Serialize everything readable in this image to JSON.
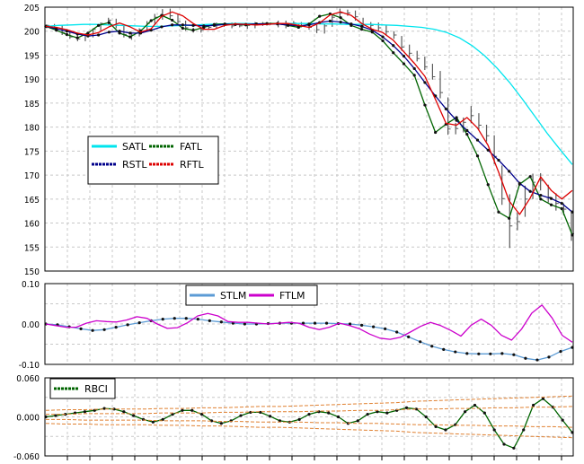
{
  "chart_data": [
    {
      "type": "line",
      "panel": "price",
      "ylim": [
        150,
        205
      ],
      "y_ticks": [
        "150",
        "155",
        "160",
        "165",
        "170",
        "175",
        "180",
        "185",
        "190",
        "195",
        "200",
        "205"
      ],
      "grid": true,
      "legend_placement": "center-left",
      "legend": [
        "SATL",
        "FATL",
        "RSTL",
        "RFTL"
      ],
      "series": [
        {
          "name": "SATL",
          "color": "#00e5ee",
          "values": [
            201.0,
            201.2,
            201.3,
            201.4,
            201.4,
            201.3,
            201.2,
            201.1,
            201.0,
            201.0,
            201.1,
            201.2,
            201.3,
            201.4,
            201.5,
            201.6,
            201.6,
            201.5,
            201.5,
            201.6,
            201.6,
            201.6,
            201.5,
            201.5,
            201.4,
            201.4,
            201.4,
            201.3,
            201.2,
            201.0,
            200.8,
            200.4,
            199.7,
            198.6,
            197.0,
            194.9,
            192.3,
            189.3,
            185.9,
            182.3,
            178.7,
            175.4,
            172.2
          ]
        },
        {
          "name": "FATL",
          "color": "#006400",
          "values": [
            201.0,
            200.2,
            199.3,
            198.6,
            199.6,
            201.2,
            201.8,
            199.6,
            198.8,
            200.0,
            202.2,
            203.3,
            202.3,
            200.6,
            200.2,
            200.8,
            201.4,
            201.5,
            201.4,
            201.3,
            201.5,
            201.6,
            201.6,
            201.2,
            200.8,
            201.5,
            203.1,
            203.6,
            202.8,
            201.2,
            200.4,
            199.8,
            198.0,
            195.5,
            193.2,
            190.8,
            184.6,
            178.9,
            180.6,
            182.0,
            178.5,
            174.0,
            168.0,
            162.3,
            161.0,
            168.1,
            169.7,
            165.0,
            163.8,
            163.0,
            157.5
          ]
        },
        {
          "name": "RSTL",
          "color": "#00008b",
          "values": [
            201.0,
            200.5,
            200.0,
            199.4,
            199.0,
            199.2,
            199.8,
            200.0,
            199.6,
            199.6,
            200.2,
            200.9,
            201.3,
            201.3,
            201.2,
            201.1,
            201.2,
            201.4,
            201.4,
            201.4,
            201.5,
            201.5,
            201.5,
            201.3,
            201.1,
            201.3,
            201.8,
            202.1,
            201.9,
            201.5,
            201.0,
            200.2,
            198.8,
            197.0,
            194.8,
            192.2,
            189.3,
            186.5,
            183.8,
            181.4,
            179.3,
            177.3,
            175.2,
            173.1,
            170.8,
            168.3,
            166.6,
            165.8,
            165.1,
            164.1,
            162.3
          ]
        },
        {
          "name": "RFTL",
          "color": "#dd0000",
          "values": [
            201.0,
            200.8,
            200.3,
            199.6,
            199.2,
            199.7,
            200.9,
            201.7,
            200.9,
            199.8,
            200.5,
            203.1,
            204.0,
            203.2,
            201.6,
            200.4,
            200.4,
            201.2,
            201.5,
            201.4,
            201.3,
            201.4,
            201.6,
            201.6,
            201.2,
            200.8,
            201.7,
            203.4,
            204.0,
            203.3,
            201.6,
            200.4,
            199.7,
            198.1,
            195.7,
            193.3,
            190.6,
            185.8,
            180.8,
            180.4,
            182.0,
            179.8,
            176.2,
            170.6,
            164.6,
            161.8,
            165.2,
            169.6,
            166.8,
            165.0,
            166.8
          ]
        }
      ],
      "bars": [
        [
          201.4,
          200.6,
          201.2
        ],
        [
          201.5,
          200.5,
          200.7
        ],
        [
          201.2,
          199.2,
          199.7
        ],
        [
          200.1,
          198.4,
          198.8
        ],
        [
          199.2,
          197.9,
          198.4
        ],
        [
          199.5,
          197.9,
          199.2
        ],
        [
          200.6,
          198.7,
          200.4
        ],
        [
          201.8,
          200.1,
          201.6
        ],
        [
          202.8,
          201.2,
          202.3
        ],
        [
          202.6,
          200.6,
          201.2
        ],
        [
          201.3,
          198.7,
          199.3
        ],
        [
          199.8,
          198.2,
          199.2
        ],
        [
          200.6,
          198.9,
          200.3
        ],
        [
          202.1,
          199.9,
          201.6
        ],
        [
          203.6,
          201.5,
          202.9
        ],
        [
          204.6,
          202.4,
          203.4
        ],
        [
          204.7,
          202.4,
          203.2
        ],
        [
          203.5,
          201.3,
          202.0
        ],
        [
          202.2,
          200.1,
          200.7
        ],
        [
          200.7,
          199.7,
          200.3
        ],
        [
          200.8,
          199.7,
          200.3
        ],
        [
          201.2,
          200.3,
          200.8
        ],
        [
          201.8,
          200.5,
          201.3
        ],
        [
          201.7,
          200.9,
          201.5
        ],
        [
          201.8,
          200.6,
          201.1
        ],
        [
          201.6,
          200.8,
          201.1
        ],
        [
          201.7,
          200.5,
          201.2
        ],
        [
          201.9,
          200.6,
          201.4
        ],
        [
          201.9,
          201.1,
          201.6
        ],
        [
          201.8,
          201.3,
          201.6
        ],
        [
          202.2,
          200.8,
          201.5
        ],
        [
          202.2,
          200.6,
          201.4
        ],
        [
          202.1,
          201.0,
          201.7
        ],
        [
          201.9,
          200.8,
          201.1
        ],
        [
          201.5,
          200.3,
          200.8
        ],
        [
          201.3,
          199.6,
          200.3
        ],
        [
          201.6,
          199.5,
          201.1
        ],
        [
          203.6,
          200.9,
          202.9
        ],
        [
          204.7,
          202.8,
          203.8
        ],
        [
          204.5,
          203.2,
          203.8
        ],
        [
          204.3,
          202.2,
          203.0
        ],
        [
          202.8,
          200.7,
          201.4
        ],
        [
          201.9,
          200.4,
          201.2
        ],
        [
          201.8,
          200.1,
          200.7
        ],
        [
          201.2,
          199.1,
          199.9
        ],
        [
          200.0,
          198.4,
          199.2
        ],
        [
          199.0,
          195.9,
          196.7
        ],
        [
          197.2,
          194.6,
          195.4
        ],
        [
          195.9,
          193.7,
          194.3
        ],
        [
          194.7,
          191.9,
          192.6
        ],
        [
          193.2,
          189.9,
          190.5
        ],
        [
          191.7,
          186.0,
          187.2
        ],
        [
          186.2,
          178.4,
          179.6
        ],
        [
          180.9,
          178.5,
          179.7
        ],
        [
          182.0,
          178.9,
          181.0
        ],
        [
          184.4,
          180.8,
          182.4
        ],
        [
          182.9,
          179.5,
          180.4
        ],
        [
          180.5,
          177.0,
          178.2
        ],
        [
          178.3,
          172.3,
          173.9
        ],
        [
          172.0,
          163.8,
          165.1
        ],
        [
          166.0,
          154.8,
          159.4
        ],
        [
          162.1,
          158.5,
          160.3
        ],
        [
          167.8,
          161.3,
          165.0
        ],
        [
          170.3,
          165.0,
          168.5
        ],
        [
          170.4,
          166.8,
          168.9
        ],
        [
          168.0,
          164.3,
          165.4
        ],
        [
          166.2,
          162.6,
          164.1
        ],
        [
          164.1,
          161.6,
          162.9
        ],
        [
          162.6,
          156.3,
          157.8
        ]
      ]
    },
    {
      "type": "line",
      "panel": "momentum",
      "ylim": [
        -0.1,
        0.1
      ],
      "y_ticks": [
        "0.10",
        "0.00",
        "-0.10"
      ],
      "grid": true,
      "legend_placement": "top-center",
      "legend": [
        "STLM",
        "FTLM"
      ],
      "series": [
        {
          "name": "STLM",
          "color": "#5b9bd5",
          "values": [
            0.0,
            -0.002,
            -0.007,
            -0.012,
            -0.016,
            -0.014,
            -0.008,
            -0.002,
            0.003,
            0.008,
            0.012,
            0.014,
            0.014,
            0.012,
            0.008,
            0.005,
            0.002,
            0.0,
            0.0,
            0.001,
            0.002,
            0.002,
            0.002,
            0.002,
            0.002,
            0.001,
            0.0,
            -0.003,
            -0.007,
            -0.012,
            -0.02,
            -0.032,
            -0.044,
            -0.055,
            -0.063,
            -0.069,
            -0.073,
            -0.074,
            -0.074,
            -0.073,
            -0.076,
            -0.085,
            -0.089,
            -0.082,
            -0.068,
            -0.058
          ]
        },
        {
          "name": "FTLM",
          "color": "#cc00cc",
          "values": [
            0.0,
            -0.004,
            -0.008,
            -0.008,
            0.002,
            0.008,
            0.006,
            0.005,
            0.01,
            0.018,
            0.014,
            0.0,
            -0.011,
            -0.009,
            0.003,
            0.02,
            0.026,
            0.02,
            0.006,
            0.004,
            0.004,
            0.002,
            0.0,
            0.002,
            0.004,
            0.002,
            -0.008,
            -0.014,
            -0.008,
            0.002,
            -0.004,
            -0.012,
            -0.025,
            -0.035,
            -0.038,
            -0.033,
            -0.02,
            -0.006,
            0.004,
            -0.004,
            -0.016,
            -0.03,
            -0.003,
            0.012,
            -0.003,
            -0.028,
            -0.04,
            -0.012,
            0.027,
            0.047,
            0.015,
            -0.028,
            -0.045
          ]
        }
      ]
    },
    {
      "type": "line",
      "panel": "oscillator",
      "ylim": [
        -0.06,
        0.06
      ],
      "y_ticks": [
        "0.060",
        "0.000",
        "-0.060"
      ],
      "grid": true,
      "legend_placement": "top-left",
      "legend": [
        "RBCI"
      ],
      "series": [
        {
          "name": "RBCI",
          "color": "#006400",
          "values": [
            0.0,
            0.002,
            0.004,
            0.006,
            0.008,
            0.01,
            0.013,
            0.012,
            0.008,
            0.002,
            -0.004,
            -0.008,
            -0.004,
            0.004,
            0.01,
            0.01,
            0.004,
            -0.006,
            -0.01,
            -0.006,
            0.002,
            0.007,
            0.007,
            0.001,
            -0.006,
            -0.008,
            -0.004,
            0.004,
            0.008,
            0.006,
            0.0,
            -0.01,
            -0.006,
            0.004,
            0.008,
            0.006,
            0.01,
            0.014,
            0.012,
            0.0,
            -0.015,
            -0.02,
            -0.012,
            0.008,
            0.018,
            0.006,
            -0.02,
            -0.042,
            -0.048,
            -0.02,
            0.018,
            0.028,
            0.015,
            -0.005,
            -0.024
          ]
        },
        {
          "name": "",
          "color": "#e08030",
          "values": [
            0.01,
            0.011,
            0.011,
            0.012,
            0.012,
            0.012,
            0.013,
            0.013,
            0.014,
            0.014,
            0.015,
            0.016,
            0.016,
            0.017,
            0.018,
            0.019,
            0.02,
            0.021,
            0.022,
            0.024,
            0.025,
            0.026,
            0.027,
            0.028,
            0.029,
            0.03,
            0.031,
            0.032
          ]
        },
        {
          "name": "",
          "color": "#e08030",
          "values": [
            0.004,
            0.004,
            0.005,
            0.005,
            0.005,
            0.005,
            0.006,
            0.006,
            0.006,
            0.007,
            0.007,
            0.008,
            0.008,
            0.008,
            0.009,
            0.009,
            0.01,
            0.01,
            0.011,
            0.012,
            0.012,
            0.013,
            0.013,
            0.014,
            0.014,
            0.015,
            0.015,
            0.016
          ]
        },
        {
          "name": "",
          "color": "#e08030",
          "values": [
            -0.004,
            -0.004,
            -0.005,
            -0.005,
            -0.005,
            -0.005,
            -0.006,
            -0.006,
            -0.006,
            -0.007,
            -0.007,
            -0.008,
            -0.008,
            -0.008,
            -0.009,
            -0.009,
            -0.01,
            -0.01,
            -0.011,
            -0.012,
            -0.012,
            -0.013,
            -0.013,
            -0.014,
            -0.014,
            -0.015,
            -0.015,
            -0.016
          ]
        },
        {
          "name": "",
          "color": "#e08030",
          "values": [
            -0.01,
            -0.011,
            -0.011,
            -0.012,
            -0.012,
            -0.012,
            -0.013,
            -0.013,
            -0.014,
            -0.014,
            -0.015,
            -0.016,
            -0.016,
            -0.017,
            -0.018,
            -0.019,
            -0.02,
            -0.021,
            -0.022,
            -0.024,
            -0.025,
            -0.026,
            -0.027,
            -0.028,
            -0.029,
            -0.03,
            -0.031,
            -0.032
          ]
        }
      ]
    }
  ]
}
